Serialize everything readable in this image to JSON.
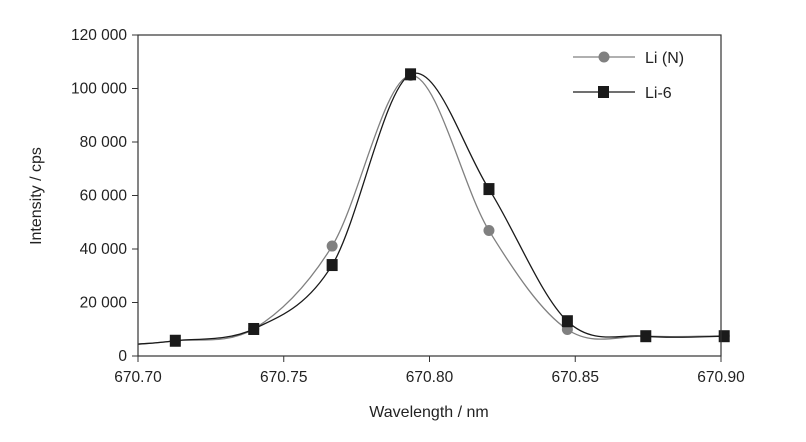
{
  "chart_data": {
    "type": "line",
    "title": "",
    "xlabel": "Wavelength / nm",
    "ylabel": "Intensity / cps",
    "xlim": [
      670.7,
      670.9
    ],
    "ylim": [
      0,
      120000
    ],
    "x_ticks": [
      "670.70",
      "670.75",
      "670.80",
      "670.85",
      "670.90"
    ],
    "x_tick_values": [
      670.7,
      670.75,
      670.8,
      670.85,
      670.9
    ],
    "y_ticks": [
      "0",
      "20 000",
      "40 000",
      "60 000",
      "80 000",
      "100 000",
      "120 000"
    ],
    "y_tick_values": [
      0,
      20000,
      40000,
      60000,
      80000,
      100000,
      120000
    ],
    "grid": false,
    "legend_position": "top-right",
    "x": [
      670.7128,
      670.7397,
      670.7666,
      670.7935,
      670.8204,
      670.8473,
      670.8742,
      670.9011
    ],
    "series": [
      {
        "name": "Li (N)",
        "marker": "circle",
        "color": "#808080",
        "values": [
          5700,
          10100,
          41100,
          104900,
          46900,
          9900,
          7400,
          7500
        ]
      },
      {
        "name": "Li-6",
        "marker": "square",
        "color": "#1a1a1a",
        "values": [
          5700,
          10100,
          34000,
          105300,
          62400,
          13000,
          7400,
          7400
        ]
      }
    ]
  }
}
